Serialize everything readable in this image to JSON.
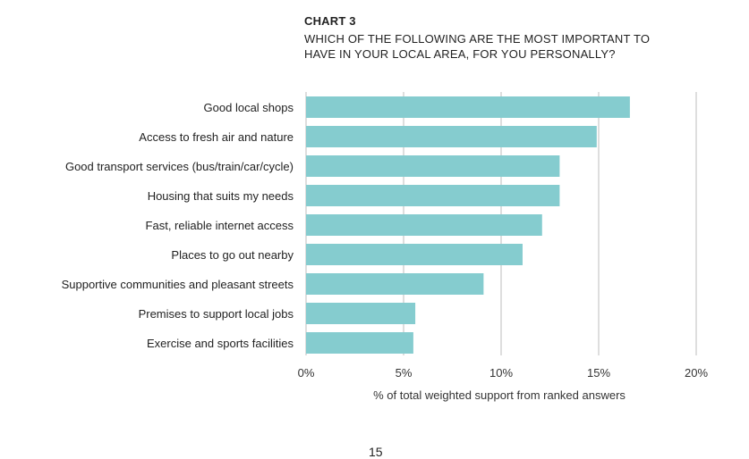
{
  "chart_data": {
    "type": "bar",
    "orientation": "horizontal",
    "title": "CHART 3",
    "subtitle": "WHICH OF THE FOLLOWING ARE THE MOST IMPORTANT TO HAVE IN YOUR LOCAL AREA, FOR YOU PERSONALLY?",
    "xlabel": "% of total weighted support from ranked answers",
    "ylabel": "",
    "categories": [
      "Good local shops",
      "Access to fresh air and nature",
      "Good transport services (bus/train/car/cycle)",
      "Housing that suits my needs",
      "Fast, reliable internet access",
      "Places to go out nearby",
      "Supportive communities and pleasant streets",
      "Premises to support local jobs",
      "Exercise and sports facilities"
    ],
    "values": [
      16.6,
      14.9,
      13.0,
      13.0,
      12.1,
      11.1,
      9.1,
      5.6,
      5.5
    ],
    "xlim": [
      0,
      20
    ],
    "xticks": [
      "0%",
      "5%",
      "10%",
      "15%",
      "20%"
    ],
    "grid": true,
    "bar_color": "#85cccf",
    "grid_color": "#c8c8c8"
  },
  "page_number": "15"
}
